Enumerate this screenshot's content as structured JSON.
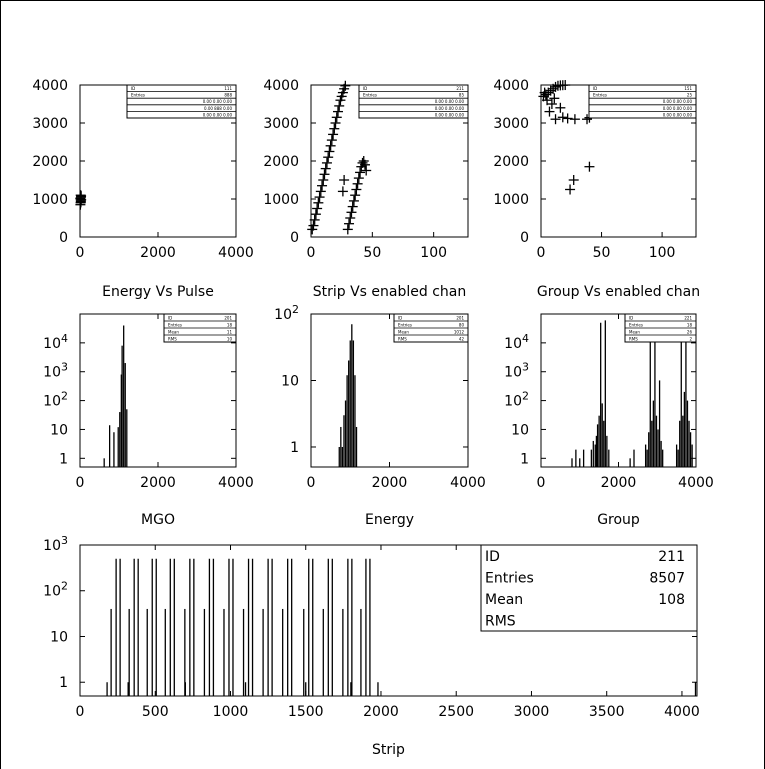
{
  "chart_data": [
    {
      "id": "energy-vs-pulse",
      "type": "scatter",
      "title": "Energy Vs Pulse",
      "xlim": [
        0,
        4000
      ],
      "ylim": [
        0,
        4000
      ],
      "xticks": [
        0,
        2000,
        4000
      ],
      "yticks": [
        0,
        1000,
        2000,
        3000,
        4000
      ],
      "points": [
        [
          10,
          850
        ],
        [
          15,
          900
        ],
        [
          20,
          950
        ],
        [
          12,
          1000
        ],
        [
          25,
          1050
        ],
        [
          18,
          1100
        ],
        [
          30,
          980
        ],
        [
          22,
          920
        ],
        [
          8,
          1020
        ],
        [
          28,
          1080
        ]
      ],
      "stats": [
        {
          "label": "ID",
          "value": "111"
        },
        {
          "label": "Entries",
          "value": "888"
        },
        {
          "label": "",
          "value": "0.00   0.00   0.00"
        },
        {
          "label": "",
          "value": "0.00   888    0.00"
        },
        {
          "label": "",
          "value": "0.00   0.00   0.00"
        }
      ]
    },
    {
      "id": "strip-vs-enabled-chan",
      "type": "scatter",
      "title": "Strip Vs enabled chan",
      "xlim": [
        0,
        128
      ],
      "ylim": [
        0,
        4000
      ],
      "xticks": [
        0,
        50,
        100
      ],
      "yticks": [
        0,
        1000,
        2000,
        3000,
        4000
      ],
      "points": [
        [
          1,
          200
        ],
        [
          2,
          300
        ],
        [
          3,
          450
        ],
        [
          4,
          600
        ],
        [
          5,
          750
        ],
        [
          6,
          900
        ],
        [
          7,
          1050
        ],
        [
          8,
          1200
        ],
        [
          9,
          1350
        ],
        [
          10,
          1500
        ],
        [
          11,
          1650
        ],
        [
          12,
          1800
        ],
        [
          13,
          1950
        ],
        [
          14,
          2100
        ],
        [
          15,
          2250
        ],
        [
          16,
          2400
        ],
        [
          17,
          2550
        ],
        [
          18,
          2700
        ],
        [
          19,
          2850
        ],
        [
          20,
          3000
        ],
        [
          21,
          3150
        ],
        [
          22,
          3300
        ],
        [
          23,
          3450
        ],
        [
          24,
          3600
        ],
        [
          25,
          3700
        ],
        [
          26,
          3800
        ],
        [
          27,
          3900
        ],
        [
          28,
          3980
        ],
        [
          26,
          1200
        ],
        [
          27,
          1500
        ],
        [
          30,
          200
        ],
        [
          31,
          350
        ],
        [
          32,
          500
        ],
        [
          33,
          650
        ],
        [
          34,
          800
        ],
        [
          35,
          950
        ],
        [
          36,
          1100
        ],
        [
          37,
          1250
        ],
        [
          38,
          1400
        ],
        [
          39,
          1550
        ],
        [
          40,
          1700
        ],
        [
          41,
          1850
        ],
        [
          42,
          1950
        ],
        [
          43,
          2000
        ],
        [
          44,
          1900
        ],
        [
          45,
          1750
        ]
      ],
      "stats": [
        {
          "label": "ID",
          "value": "211"
        },
        {
          "label": "Entries",
          "value": "85"
        },
        {
          "label": "",
          "value": "0.00   0.00   0.00"
        },
        {
          "label": "",
          "value": "0.00   0.00   0.00"
        },
        {
          "label": "",
          "value": "0.00   0.00   0.00"
        }
      ]
    },
    {
      "id": "group-vs-enabled-chan",
      "type": "scatter",
      "title": "Group Vs enabled chan",
      "xlim": [
        0,
        128
      ],
      "ylim": [
        0,
        4000
      ],
      "xticks": [
        0,
        50,
        100
      ],
      "yticks": [
        0,
        1000,
        2000,
        3000,
        4000
      ],
      "points": [
        [
          2,
          3700
        ],
        [
          4,
          3750
        ],
        [
          6,
          3800
        ],
        [
          8,
          3850
        ],
        [
          10,
          3900
        ],
        [
          12,
          3950
        ],
        [
          14,
          3980
        ],
        [
          16,
          3990
        ],
        [
          18,
          3995
        ],
        [
          20,
          3999
        ],
        [
          5,
          3600
        ],
        [
          9,
          3500
        ],
        [
          11,
          3650
        ],
        [
          16,
          3400
        ],
        [
          3,
          3800
        ],
        [
          7,
          3300
        ],
        [
          12,
          3100
        ],
        [
          18,
          3150
        ],
        [
          22,
          3120
        ],
        [
          28,
          3100
        ],
        [
          38,
          3100
        ],
        [
          40,
          3140
        ],
        [
          24,
          1250
        ],
        [
          27,
          1500
        ],
        [
          40,
          1850
        ]
      ],
      "stats": [
        {
          "label": "ID",
          "value": "151"
        },
        {
          "label": "Entries",
          "value": "25"
        },
        {
          "label": "",
          "value": "0.00   0.00   0.00"
        },
        {
          "label": "",
          "value": "0.00   0.00   0.00"
        },
        {
          "label": "",
          "value": "0.00   0.00   0.00"
        }
      ]
    },
    {
      "id": "mgo",
      "type": "bar",
      "title": "MGO",
      "yscale": "log",
      "xlim": [
        0,
        4000
      ],
      "ylim": [
        0.5,
        100000
      ],
      "xticks": [
        0,
        2000,
        4000
      ],
      "yticks": [
        1,
        10,
        100,
        1000,
        10000
      ],
      "ytick_labels": [
        "1",
        "10",
        "10^2",
        "10^3",
        "10^4"
      ],
      "x": [
        620,
        760,
        870,
        980,
        1020,
        1060,
        1080,
        1120,
        1160,
        1200
      ],
      "values": [
        1,
        14,
        8,
        12,
        40,
        800,
        8000,
        40000,
        2000,
        50
      ],
      "stats": [
        {
          "label": "ID",
          "value": "201"
        },
        {
          "label": "Entries",
          "value": "18"
        },
        {
          "label": "Mean",
          "value": "11"
        },
        {
          "label": "RMS",
          "value": "10"
        }
      ]
    },
    {
      "id": "energy",
      "type": "bar",
      "title": "Energy",
      "yscale": "log",
      "xlim": [
        0,
        4000
      ],
      "ylim": [
        0.5,
        100
      ],
      "xticks": [
        0,
        2000,
        4000
      ],
      "yticks": [
        1,
        10,
        100
      ],
      "ytick_labels": [
        "1",
        "10",
        "10^2"
      ],
      "x": [
        720,
        760,
        800,
        840,
        880,
        920,
        960,
        1000,
        1040,
        1080,
        1120,
        1160
      ],
      "values": [
        1,
        2,
        1,
        3,
        5,
        12,
        20,
        40,
        70,
        40,
        12,
        2
      ],
      "stats": [
        {
          "label": "ID",
          "value": "201"
        },
        {
          "label": "Entries",
          "value": "80"
        },
        {
          "label": "Mean",
          "value": "1012"
        },
        {
          "label": "RMS",
          "value": "42"
        }
      ]
    },
    {
      "id": "group",
      "type": "bar",
      "title": "Group",
      "yscale": "log",
      "xlim": [
        0,
        4000
      ],
      "ylim": [
        0.5,
        100000
      ],
      "xticks": [
        0,
        2000,
        4000
      ],
      "yticks": [
        1,
        10,
        100,
        1000,
        10000
      ],
      "ytick_labels": [
        "1",
        "10",
        "10^2",
        "10^3",
        "10^4"
      ],
      "x": [
        1300,
        1350,
        1400,
        1430,
        1460,
        1500,
        1540,
        1580,
        1620,
        1660,
        1700,
        1750,
        2700,
        2740,
        2780,
        2820,
        2860,
        2900,
        2940,
        2980,
        3020,
        3060,
        3100,
        3140,
        3500,
        3540,
        3580,
        3620,
        3660,
        3700,
        3740,
        3780,
        3820,
        3860,
        3900,
        800,
        900,
        1000,
        1100,
        2300,
        2400
      ],
      "values": [
        2,
        4,
        3,
        6,
        15,
        30,
        50000,
        80,
        20,
        60000,
        6,
        2,
        3,
        2,
        8,
        60000,
        20,
        100,
        40000,
        30,
        10,
        500,
        4,
        2,
        3,
        2,
        20,
        50000,
        30,
        200,
        40000,
        100,
        20,
        8,
        3,
        1,
        2,
        1,
        2,
        1,
        2
      ],
      "stats": [
        {
          "label": "ID",
          "value": "221"
        },
        {
          "label": "Entries",
          "value": "18"
        },
        {
          "label": "Mean",
          "value": "26"
        },
        {
          "label": "RMS",
          "value": "2"
        }
      ]
    },
    {
      "id": "strip",
      "type": "bar",
      "title": "Strip",
      "yscale": "log",
      "xlim": [
        0,
        4100
      ],
      "ylim": [
        0.5,
        1000
      ],
      "xticks": [
        0,
        500,
        1000,
        1500,
        2000,
        2500,
        3000,
        3500,
        4000
      ],
      "yticks": [
        1,
        10,
        100,
        1000
      ],
      "ytick_labels": [
        "1",
        "10",
        "10^2",
        "10^3"
      ],
      "peaks": [
        240,
        360,
        480,
        600,
        730,
        860,
        990,
        1120,
        1250,
        1380,
        1520,
        1650,
        1780,
        1900
      ],
      "peak_value": 500,
      "extra_x": [
        180,
        320,
        700,
        1100,
        1500,
        1800,
        1980,
        4090
      ],
      "extra_values": [
        1,
        1,
        1,
        1,
        1,
        1,
        1,
        1
      ],
      "stats": [
        {
          "label": "ID",
          "value": "211"
        },
        {
          "label": "Entries",
          "value": "8507"
        },
        {
          "label": "Mean",
          "value": "108"
        },
        {
          "label": "RMS",
          "value": ""
        }
      ]
    }
  ]
}
